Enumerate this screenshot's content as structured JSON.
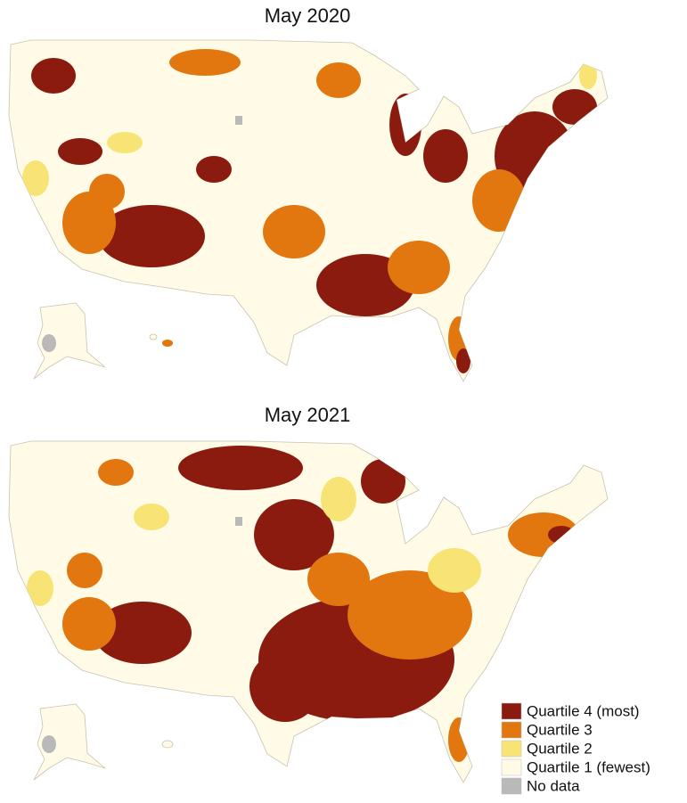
{
  "maps": [
    {
      "title": "May 2020"
    },
    {
      "title": "May 2021"
    }
  ],
  "legend": {
    "items": [
      {
        "label": "Quartile 4 (most)",
        "color": "#8b1a0f"
      },
      {
        "label": "Quartile 3",
        "color": "#e2760f"
      },
      {
        "label": "Quartile 2",
        "color": "#f7e474"
      },
      {
        "label": "Quartile 1 (fewest)",
        "color": "#fffbe6"
      },
      {
        "label": "No data",
        "color": "#b9b9b9"
      }
    ]
  }
}
